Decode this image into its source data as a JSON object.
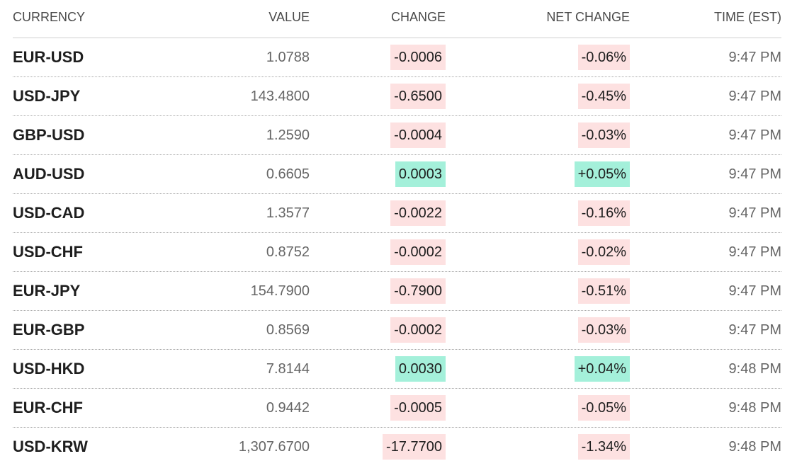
{
  "table": {
    "columns": [
      "CURRENCY",
      "VALUE",
      "CHANGE",
      "NET CHANGE",
      "TIME (EST)"
    ],
    "rows": [
      [
        "EUR-USD",
        "1.0788",
        "-0.0006",
        "-0.06%",
        "9:47 PM"
      ],
      [
        "USD-JPY",
        "143.4800",
        "-0.6500",
        "-0.45%",
        "9:47 PM"
      ],
      [
        "GBP-USD",
        "1.2590",
        "-0.0004",
        "-0.03%",
        "9:47 PM"
      ],
      [
        "AUD-USD",
        "0.6605",
        "0.0003",
        "+0.05%",
        "9:47 PM"
      ],
      [
        "USD-CAD",
        "1.3577",
        "-0.0022",
        "-0.16%",
        "9:47 PM"
      ],
      [
        "USD-CHF",
        "0.8752",
        "-0.0002",
        "-0.02%",
        "9:47 PM"
      ],
      [
        "EUR-JPY",
        "154.7900",
        "-0.7900",
        "-0.51%",
        "9:47 PM"
      ],
      [
        "EUR-GBP",
        "0.8569",
        "-0.0002",
        "-0.03%",
        "9:47 PM"
      ],
      [
        "USD-HKD",
        "7.8144",
        "0.0030",
        "+0.04%",
        "9:48 PM"
      ],
      [
        "EUR-CHF",
        "0.9442",
        "-0.0005",
        "-0.05%",
        "9:48 PM"
      ],
      [
        "USD-KRW",
        "1,307.6700",
        "-17.7700",
        "-1.34%",
        "9:48 PM"
      ]
    ]
  }
}
